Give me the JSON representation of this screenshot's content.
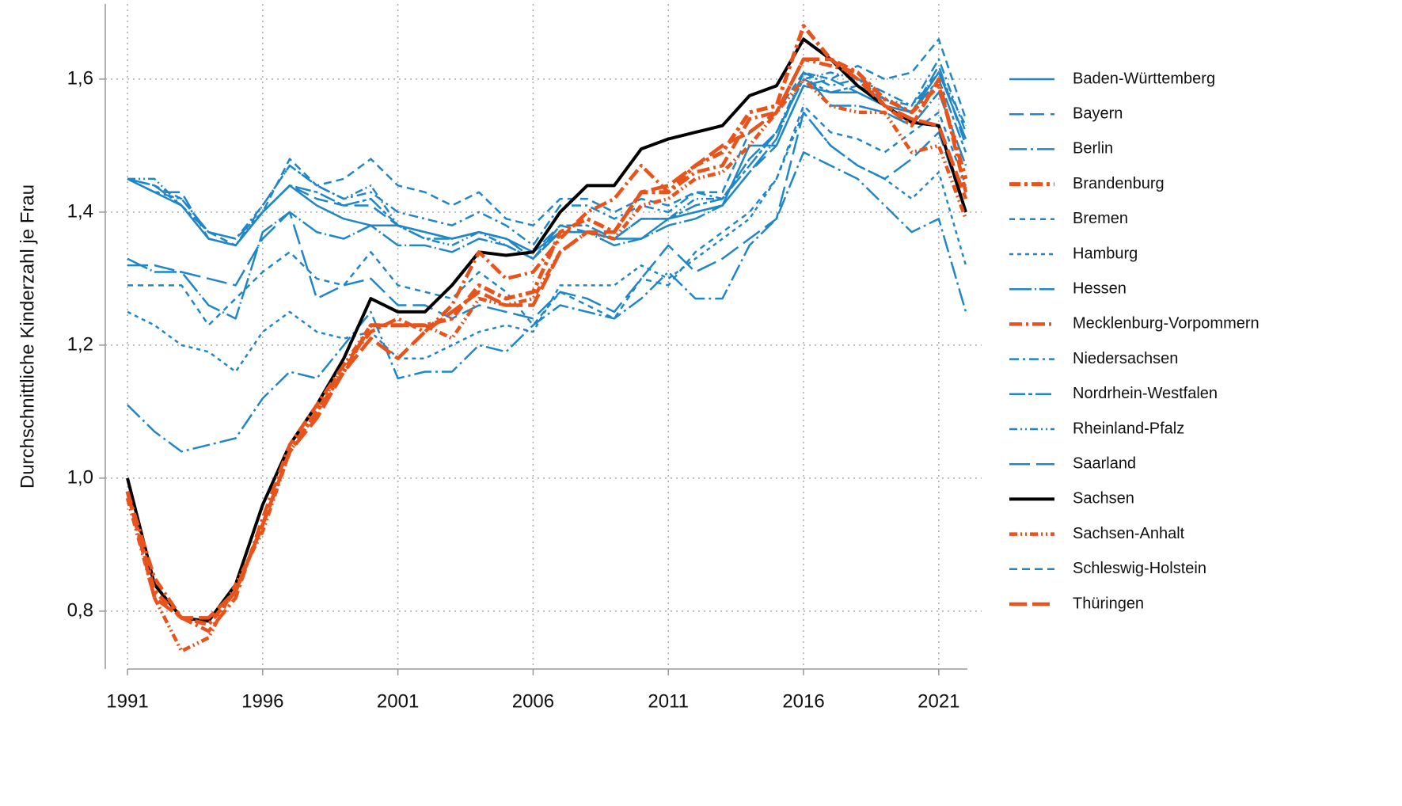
{
  "chart_data": {
    "type": "line",
    "y_label": "Durchschnittliche Kinderzahl je Frau",
    "x": [
      1991,
      1992,
      1993,
      1994,
      1995,
      1996,
      1997,
      1998,
      1999,
      2000,
      2001,
      2002,
      2003,
      2004,
      2005,
      2006,
      2007,
      2008,
      2009,
      2010,
      2011,
      2012,
      2013,
      2014,
      2015,
      2016,
      2017,
      2018,
      2019,
      2020,
      2021,
      2022
    ],
    "xlim": [
      1991,
      2022
    ],
    "xticks": [
      1991,
      1996,
      2001,
      2006,
      2011,
      2016,
      2021
    ],
    "ylim": [
      0.713,
      1.713
    ],
    "yticks": [
      {
        "value": 0.8,
        "label": "0,8"
      },
      {
        "value": 1.0,
        "label": "1,0"
      },
      {
        "value": 1.2,
        "label": "1,2"
      },
      {
        "value": 1.4,
        "label": "1,4"
      },
      {
        "value": 1.6,
        "label": "1,6"
      }
    ],
    "grid": true,
    "legend": "right",
    "series": [
      {
        "name": "Baden-Württemberg",
        "color": "#1f86c8",
        "dash": "none",
        "width": 2.5,
        "values": [
          1.45,
          1.43,
          1.41,
          1.36,
          1.35,
          1.4,
          1.44,
          1.41,
          1.39,
          1.38,
          1.38,
          1.37,
          1.36,
          1.37,
          1.36,
          1.34,
          1.37,
          1.37,
          1.36,
          1.36,
          1.39,
          1.4,
          1.41,
          1.5,
          1.5,
          1.59,
          1.58,
          1.58,
          1.56,
          1.55,
          1.61,
          1.51
        ]
      },
      {
        "name": "Bayern",
        "color": "#1f86c8",
        "dash": "18 8",
        "width": 2.5,
        "values": [
          1.45,
          1.43,
          1.43,
          1.36,
          1.35,
          1.4,
          1.44,
          1.42,
          1.41,
          1.41,
          1.38,
          1.37,
          1.36,
          1.37,
          1.36,
          1.34,
          1.38,
          1.37,
          1.36,
          1.39,
          1.39,
          1.4,
          1.41,
          1.46,
          1.5,
          1.59,
          1.6,
          1.58,
          1.56,
          1.55,
          1.62,
          1.5
        ]
      },
      {
        "name": "Berlin",
        "color": "#1f86c8",
        "dash": "22 5 3 5",
        "width": 2.5,
        "values": [
          1.11,
          1.07,
          1.04,
          1.05,
          1.06,
          1.12,
          1.16,
          1.15,
          1.2,
          1.25,
          1.15,
          1.16,
          1.16,
          1.2,
          1.19,
          1.23,
          1.26,
          1.25,
          1.24,
          1.27,
          1.31,
          1.27,
          1.27,
          1.35,
          1.39,
          1.49,
          1.47,
          1.45,
          1.41,
          1.37,
          1.39,
          1.25
        ]
      },
      {
        "name": "Brandenburg",
        "color": "#e8531c",
        "dash": "14 5 4 5",
        "width": 5,
        "values": [
          0.98,
          0.83,
          0.79,
          0.78,
          0.83,
          0.93,
          1.04,
          1.1,
          1.16,
          1.23,
          1.23,
          1.23,
          1.24,
          1.29,
          1.27,
          1.28,
          1.37,
          1.39,
          1.37,
          1.43,
          1.43,
          1.47,
          1.49,
          1.55,
          1.56,
          1.68,
          1.63,
          1.61,
          1.57,
          1.55,
          1.59,
          1.45
        ]
      },
      {
        "name": "Bremen",
        "color": "#1f86c8",
        "dash": "7 6",
        "width": 2.5,
        "values": [
          1.29,
          1.29,
          1.29,
          1.23,
          1.27,
          1.31,
          1.34,
          1.3,
          1.29,
          1.34,
          1.29,
          1.28,
          1.27,
          1.31,
          1.28,
          1.23,
          1.28,
          1.26,
          1.24,
          1.3,
          1.29,
          1.34,
          1.37,
          1.4,
          1.45,
          1.56,
          1.52,
          1.51,
          1.49,
          1.52,
          1.55,
          1.44
        ]
      },
      {
        "name": "Hamburg",
        "color": "#1f86c8",
        "dash": "5 5",
        "width": 2.5,
        "values": [
          1.25,
          1.23,
          1.2,
          1.19,
          1.16,
          1.22,
          1.25,
          1.22,
          1.21,
          1.22,
          1.18,
          1.18,
          1.2,
          1.22,
          1.23,
          1.22,
          1.29,
          1.29,
          1.29,
          1.32,
          1.3,
          1.33,
          1.36,
          1.39,
          1.45,
          1.55,
          1.5,
          1.47,
          1.45,
          1.42,
          1.46,
          1.32
        ]
      },
      {
        "name": "Hessen",
        "color": "#1f86c8",
        "dash": "28 4 2 4",
        "width": 2.5,
        "values": [
          1.33,
          1.31,
          1.31,
          1.26,
          1.24,
          1.37,
          1.4,
          1.37,
          1.36,
          1.38,
          1.35,
          1.35,
          1.34,
          1.36,
          1.35,
          1.33,
          1.37,
          1.37,
          1.35,
          1.36,
          1.38,
          1.39,
          1.41,
          1.46,
          1.51,
          1.61,
          1.56,
          1.56,
          1.55,
          1.53,
          1.58,
          1.47
        ]
      },
      {
        "name": "Mecklenburg-Vorpommern",
        "color": "#e8531c",
        "dash": "16 5 3 5",
        "width": 4.5,
        "values": [
          0.98,
          0.85,
          0.79,
          0.77,
          0.82,
          0.94,
          1.05,
          1.11,
          1.17,
          1.22,
          1.24,
          1.22,
          1.26,
          1.34,
          1.3,
          1.31,
          1.36,
          1.4,
          1.42,
          1.47,
          1.43,
          1.46,
          1.47,
          1.54,
          1.55,
          1.63,
          1.62,
          1.61,
          1.56,
          1.53,
          1.6,
          1.43
        ]
      },
      {
        "name": "Niedersachsen",
        "color": "#1f86c8",
        "dash": "12 5 3 5",
        "width": 2.5,
        "values": [
          1.45,
          1.43,
          1.42,
          1.37,
          1.36,
          1.41,
          1.47,
          1.44,
          1.42,
          1.43,
          1.4,
          1.39,
          1.38,
          1.4,
          1.38,
          1.35,
          1.41,
          1.41,
          1.39,
          1.41,
          1.4,
          1.43,
          1.42,
          1.48,
          1.52,
          1.61,
          1.59,
          1.6,
          1.58,
          1.56,
          1.63,
          1.52
        ]
      },
      {
        "name": "Nordrhein-Westfalen",
        "color": "#1f86c8",
        "dash": "20 4 5 4",
        "width": 2.5,
        "values": [
          1.45,
          1.44,
          1.41,
          1.37,
          1.36,
          1.4,
          1.44,
          1.43,
          1.41,
          1.42,
          1.38,
          1.36,
          1.36,
          1.37,
          1.36,
          1.33,
          1.38,
          1.38,
          1.36,
          1.39,
          1.39,
          1.41,
          1.42,
          1.47,
          1.52,
          1.6,
          1.58,
          1.59,
          1.57,
          1.55,
          1.6,
          1.49
        ]
      },
      {
        "name": "Rheinland-Pfalz",
        "color": "#1f86c8",
        "dash": "10 4 2 4 2 4",
        "width": 2.5,
        "values": [
          1.45,
          1.45,
          1.41,
          1.36,
          1.35,
          1.41,
          1.47,
          1.44,
          1.42,
          1.44,
          1.38,
          1.36,
          1.35,
          1.37,
          1.35,
          1.33,
          1.37,
          1.37,
          1.36,
          1.39,
          1.39,
          1.42,
          1.42,
          1.48,
          1.52,
          1.6,
          1.61,
          1.6,
          1.57,
          1.56,
          1.61,
          1.53
        ]
      },
      {
        "name": "Saarland",
        "color": "#1f86c8",
        "dash": "26 8",
        "width": 2.5,
        "values": [
          1.32,
          1.32,
          1.31,
          1.3,
          1.29,
          1.36,
          1.4,
          1.27,
          1.29,
          1.3,
          1.26,
          1.26,
          1.24,
          1.26,
          1.25,
          1.24,
          1.28,
          1.27,
          1.25,
          1.3,
          1.35,
          1.31,
          1.33,
          1.36,
          1.39,
          1.55,
          1.5,
          1.47,
          1.45,
          1.48,
          1.52,
          1.4
        ]
      },
      {
        "name": "Sachsen",
        "color": "#000000",
        "dash": "none",
        "width": 4,
        "values": [
          1.0,
          0.84,
          0.79,
          0.785,
          0.84,
          0.96,
          1.05,
          1.11,
          1.18,
          1.27,
          1.25,
          1.25,
          1.29,
          1.34,
          1.335,
          1.34,
          1.4,
          1.44,
          1.44,
          1.495,
          1.51,
          1.52,
          1.53,
          1.575,
          1.59,
          1.66,
          1.63,
          1.59,
          1.56,
          1.535,
          1.53,
          1.4
        ]
      },
      {
        "name": "Sachsen-Anhalt",
        "color": "#e8531c",
        "dash": "10 4 2 4 2 4",
        "width": 4.5,
        "values": [
          0.97,
          0.82,
          0.74,
          0.76,
          0.84,
          0.92,
          1.04,
          1.1,
          1.17,
          1.23,
          1.23,
          1.23,
          1.21,
          1.27,
          1.26,
          1.27,
          1.34,
          1.37,
          1.36,
          1.41,
          1.42,
          1.45,
          1.46,
          1.5,
          1.55,
          1.6,
          1.56,
          1.55,
          1.55,
          1.49,
          1.5,
          1.39
        ]
      },
      {
        "name": "Schleswig-Holstein",
        "color": "#1f86c8",
        "dash": "10 6",
        "width": 2.5,
        "values": [
          1.45,
          1.44,
          1.42,
          1.37,
          1.35,
          1.4,
          1.48,
          1.44,
          1.45,
          1.48,
          1.44,
          1.43,
          1.41,
          1.43,
          1.39,
          1.38,
          1.42,
          1.42,
          1.4,
          1.42,
          1.41,
          1.43,
          1.43,
          1.52,
          1.55,
          1.61,
          1.6,
          1.62,
          1.6,
          1.61,
          1.66,
          1.54
        ]
      },
      {
        "name": "Thüringen",
        "color": "#e8531c",
        "dash": "22 7",
        "width": 4.5,
        "values": [
          0.98,
          0.82,
          0.79,
          0.79,
          0.83,
          0.93,
          1.04,
          1.09,
          1.16,
          1.21,
          1.18,
          1.22,
          1.25,
          1.28,
          1.26,
          1.26,
          1.34,
          1.37,
          1.37,
          1.43,
          1.44,
          1.47,
          1.5,
          1.52,
          1.55,
          1.63,
          1.63,
          1.6,
          1.56,
          1.54,
          1.53,
          1.42
        ]
      }
    ]
  }
}
